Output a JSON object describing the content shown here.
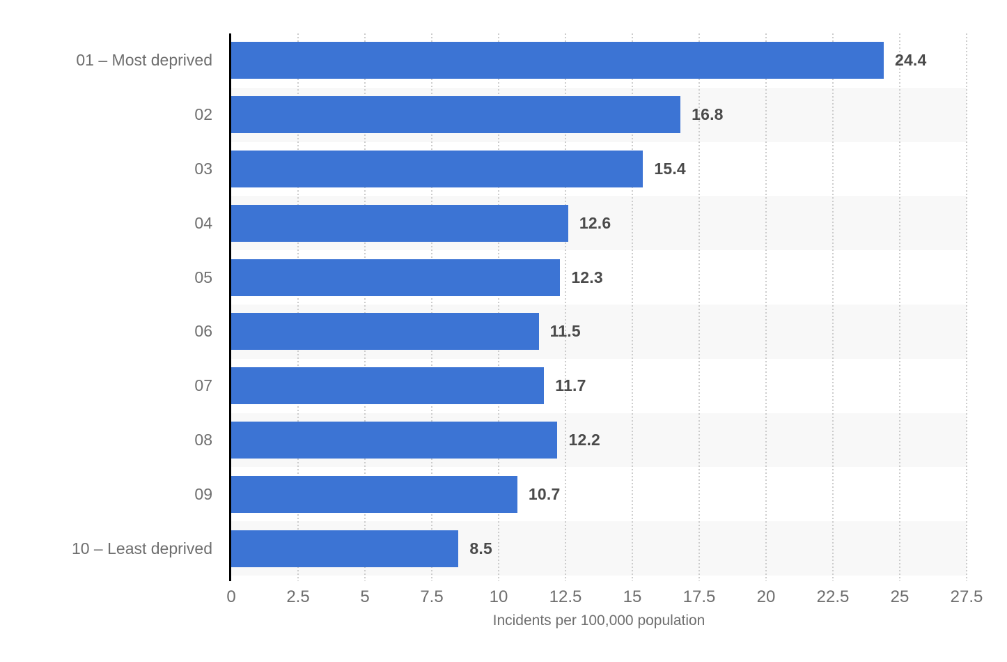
{
  "chart_data": {
    "type": "bar",
    "orientation": "horizontal",
    "title": "",
    "categories": [
      "01 – Most deprived",
      "02",
      "03",
      "04",
      "05",
      "06",
      "07",
      "08",
      "09",
      "10 – Least deprived"
    ],
    "values": [
      24.4,
      16.8,
      15.4,
      12.6,
      12.3,
      11.5,
      11.7,
      12.2,
      10.7,
      8.5
    ],
    "value_labels": [
      "24.4",
      "16.8",
      "15.4",
      "12.6",
      "12.3",
      "11.5",
      "11.7",
      "12.2",
      "10.7",
      "8.5"
    ],
    "xlabel": "Incidents per 100,000 population",
    "ylabel": "",
    "xlim": [
      0,
      27.5
    ],
    "xticks": [
      0,
      2.5,
      5,
      7.5,
      10,
      12.5,
      15,
      17.5,
      20,
      22.5,
      25,
      27.5
    ],
    "xtick_labels": [
      "0",
      "2.5",
      "5",
      "7.5",
      "10",
      "12.5",
      "15",
      "17.5",
      "20",
      "22.5",
      "25",
      "27.5"
    ],
    "grid": "vertical-dotted",
    "legend": "none",
    "row_striping": "even-rows-shaded",
    "colors": {
      "bar": "#3c74d4",
      "row_stripe": "#f8f8f8",
      "gridline": "#cccccc",
      "axis_line": "#000000",
      "category_label": "#6e6e6e",
      "value_label": "#4a4a4a",
      "tick_label": "#6e6e6e",
      "axis_title": "#6e6e6e",
      "background": "#ffffff"
    }
  }
}
